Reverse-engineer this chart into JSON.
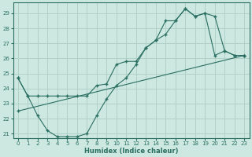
{
  "xlabel": "Humidex (Indice chaleur)",
  "bg_color": "#cde8e0",
  "line_color": "#2a6e62",
  "grid_color": "#b0d0c8",
  "xlim": [
    -0.5,
    23.5
  ],
  "ylim": [
    20.7,
    29.7
  ],
  "xticks": [
    0,
    1,
    2,
    3,
    4,
    5,
    6,
    7,
    8,
    9,
    10,
    11,
    12,
    13,
    14,
    15,
    16,
    17,
    18,
    19,
    20,
    21,
    22,
    23
  ],
  "yticks": [
    21,
    22,
    23,
    24,
    25,
    26,
    27,
    28,
    29
  ],
  "line1_x": [
    0,
    1,
    2,
    3,
    4,
    5,
    6,
    7,
    8,
    9,
    10,
    11,
    12,
    13,
    14,
    15,
    16,
    17,
    18,
    19,
    20,
    21,
    22,
    23
  ],
  "line1_y": [
    24.7,
    23.5,
    23.5,
    23.5,
    23.5,
    23.5,
    23.5,
    23.5,
    24.2,
    24.3,
    25.6,
    25.8,
    25.8,
    26.7,
    27.2,
    27.6,
    28.5,
    29.3,
    28.8,
    29.0,
    26.2,
    26.5,
    26.2,
    26.2
  ],
  "line2_x": [
    0,
    1,
    2,
    3,
    4,
    5,
    6,
    7,
    8,
    9,
    10,
    11,
    12,
    13,
    14,
    15,
    16,
    17,
    18,
    19,
    20,
    21,
    22,
    23
  ],
  "line2_y": [
    24.7,
    23.5,
    22.2,
    21.2,
    20.8,
    20.8,
    20.8,
    21.0,
    22.2,
    23.3,
    24.2,
    24.7,
    25.6,
    26.7,
    27.2,
    28.5,
    28.5,
    29.3,
    28.8,
    29.0,
    28.8,
    26.5,
    26.2,
    26.2
  ],
  "line3_x": [
    0,
    23
  ],
  "line3_y": [
    22.5,
    26.2
  ]
}
